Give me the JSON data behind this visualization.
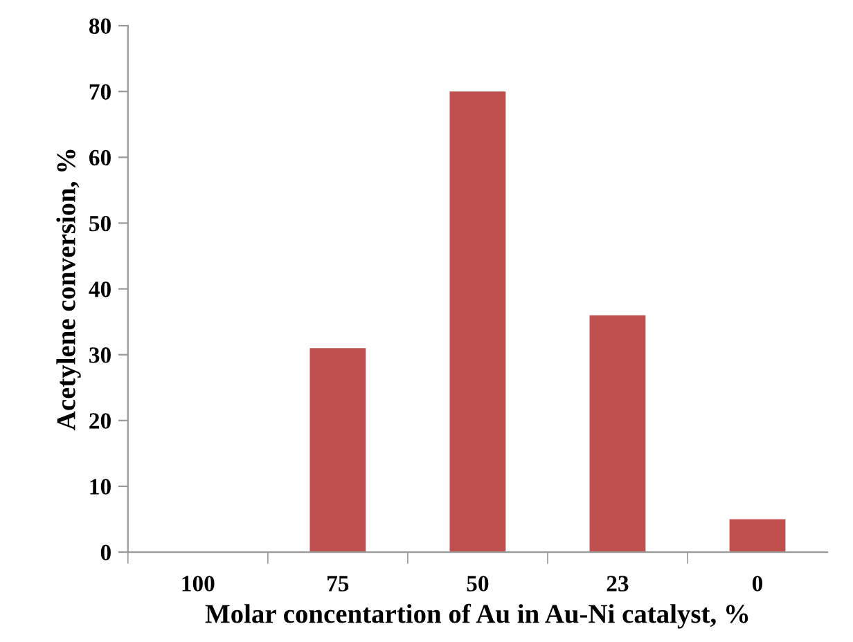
{
  "chart_data": {
    "type": "bar",
    "xlabel": "Molar concentartion of Au in Au-Ni catalyst, %",
    "ylabel": "Acetylene conversion, %",
    "categories": [
      "100",
      "75",
      "50",
      "23",
      "0"
    ],
    "values": [
      0,
      31,
      70,
      36,
      5
    ],
    "color": "#c0504d",
    "ylim": [
      0,
      80
    ],
    "yticks": [
      0,
      10,
      20,
      30,
      40,
      50,
      60,
      70,
      80
    ],
    "grid": false
  }
}
